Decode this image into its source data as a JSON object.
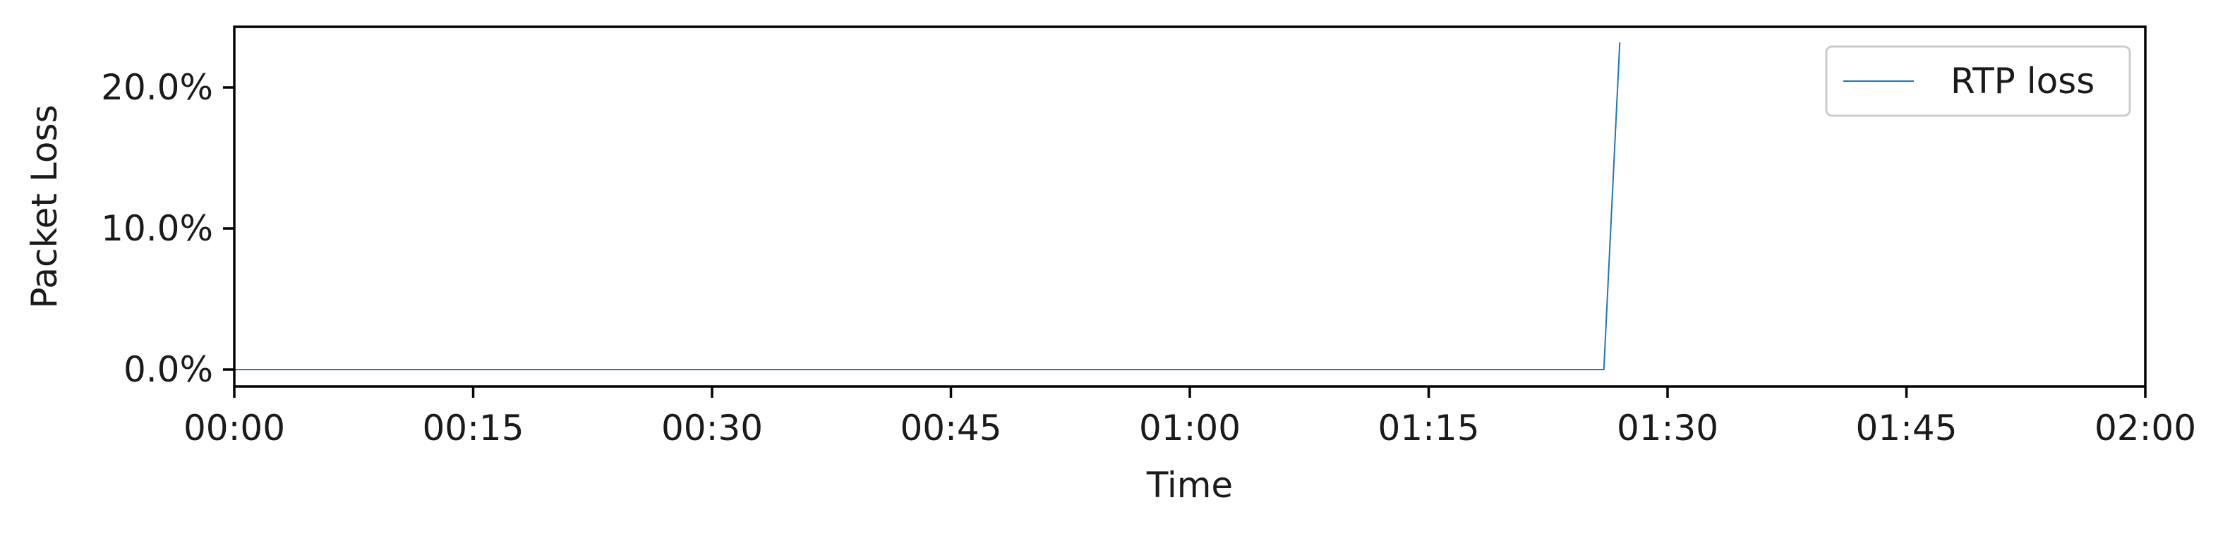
{
  "chart_data": {
    "type": "line",
    "title": "",
    "xlabel": "Time",
    "ylabel": "Packet Loss",
    "x_ticks": [
      "00:00",
      "00:15",
      "00:30",
      "00:45",
      "01:00",
      "01:15",
      "01:30",
      "01:45",
      "02:00"
    ],
    "x_tick_minutes": [
      0,
      15,
      30,
      45,
      60,
      75,
      90,
      105,
      120
    ],
    "xlim_minutes": [
      0,
      120
    ],
    "y_ticks": [
      "0.0%",
      "10.0%",
      "20.0%"
    ],
    "y_tick_values": [
      0,
      10,
      20
    ],
    "ylim": [
      -1.2,
      24.3
    ],
    "grid": false,
    "legend_position": "top-right",
    "series": [
      {
        "name": "RTP loss",
        "color": "#1f77b4",
        "x_minutes": [
          0,
          86,
          87
        ],
        "values": [
          0,
          0,
          23.2
        ]
      }
    ]
  }
}
